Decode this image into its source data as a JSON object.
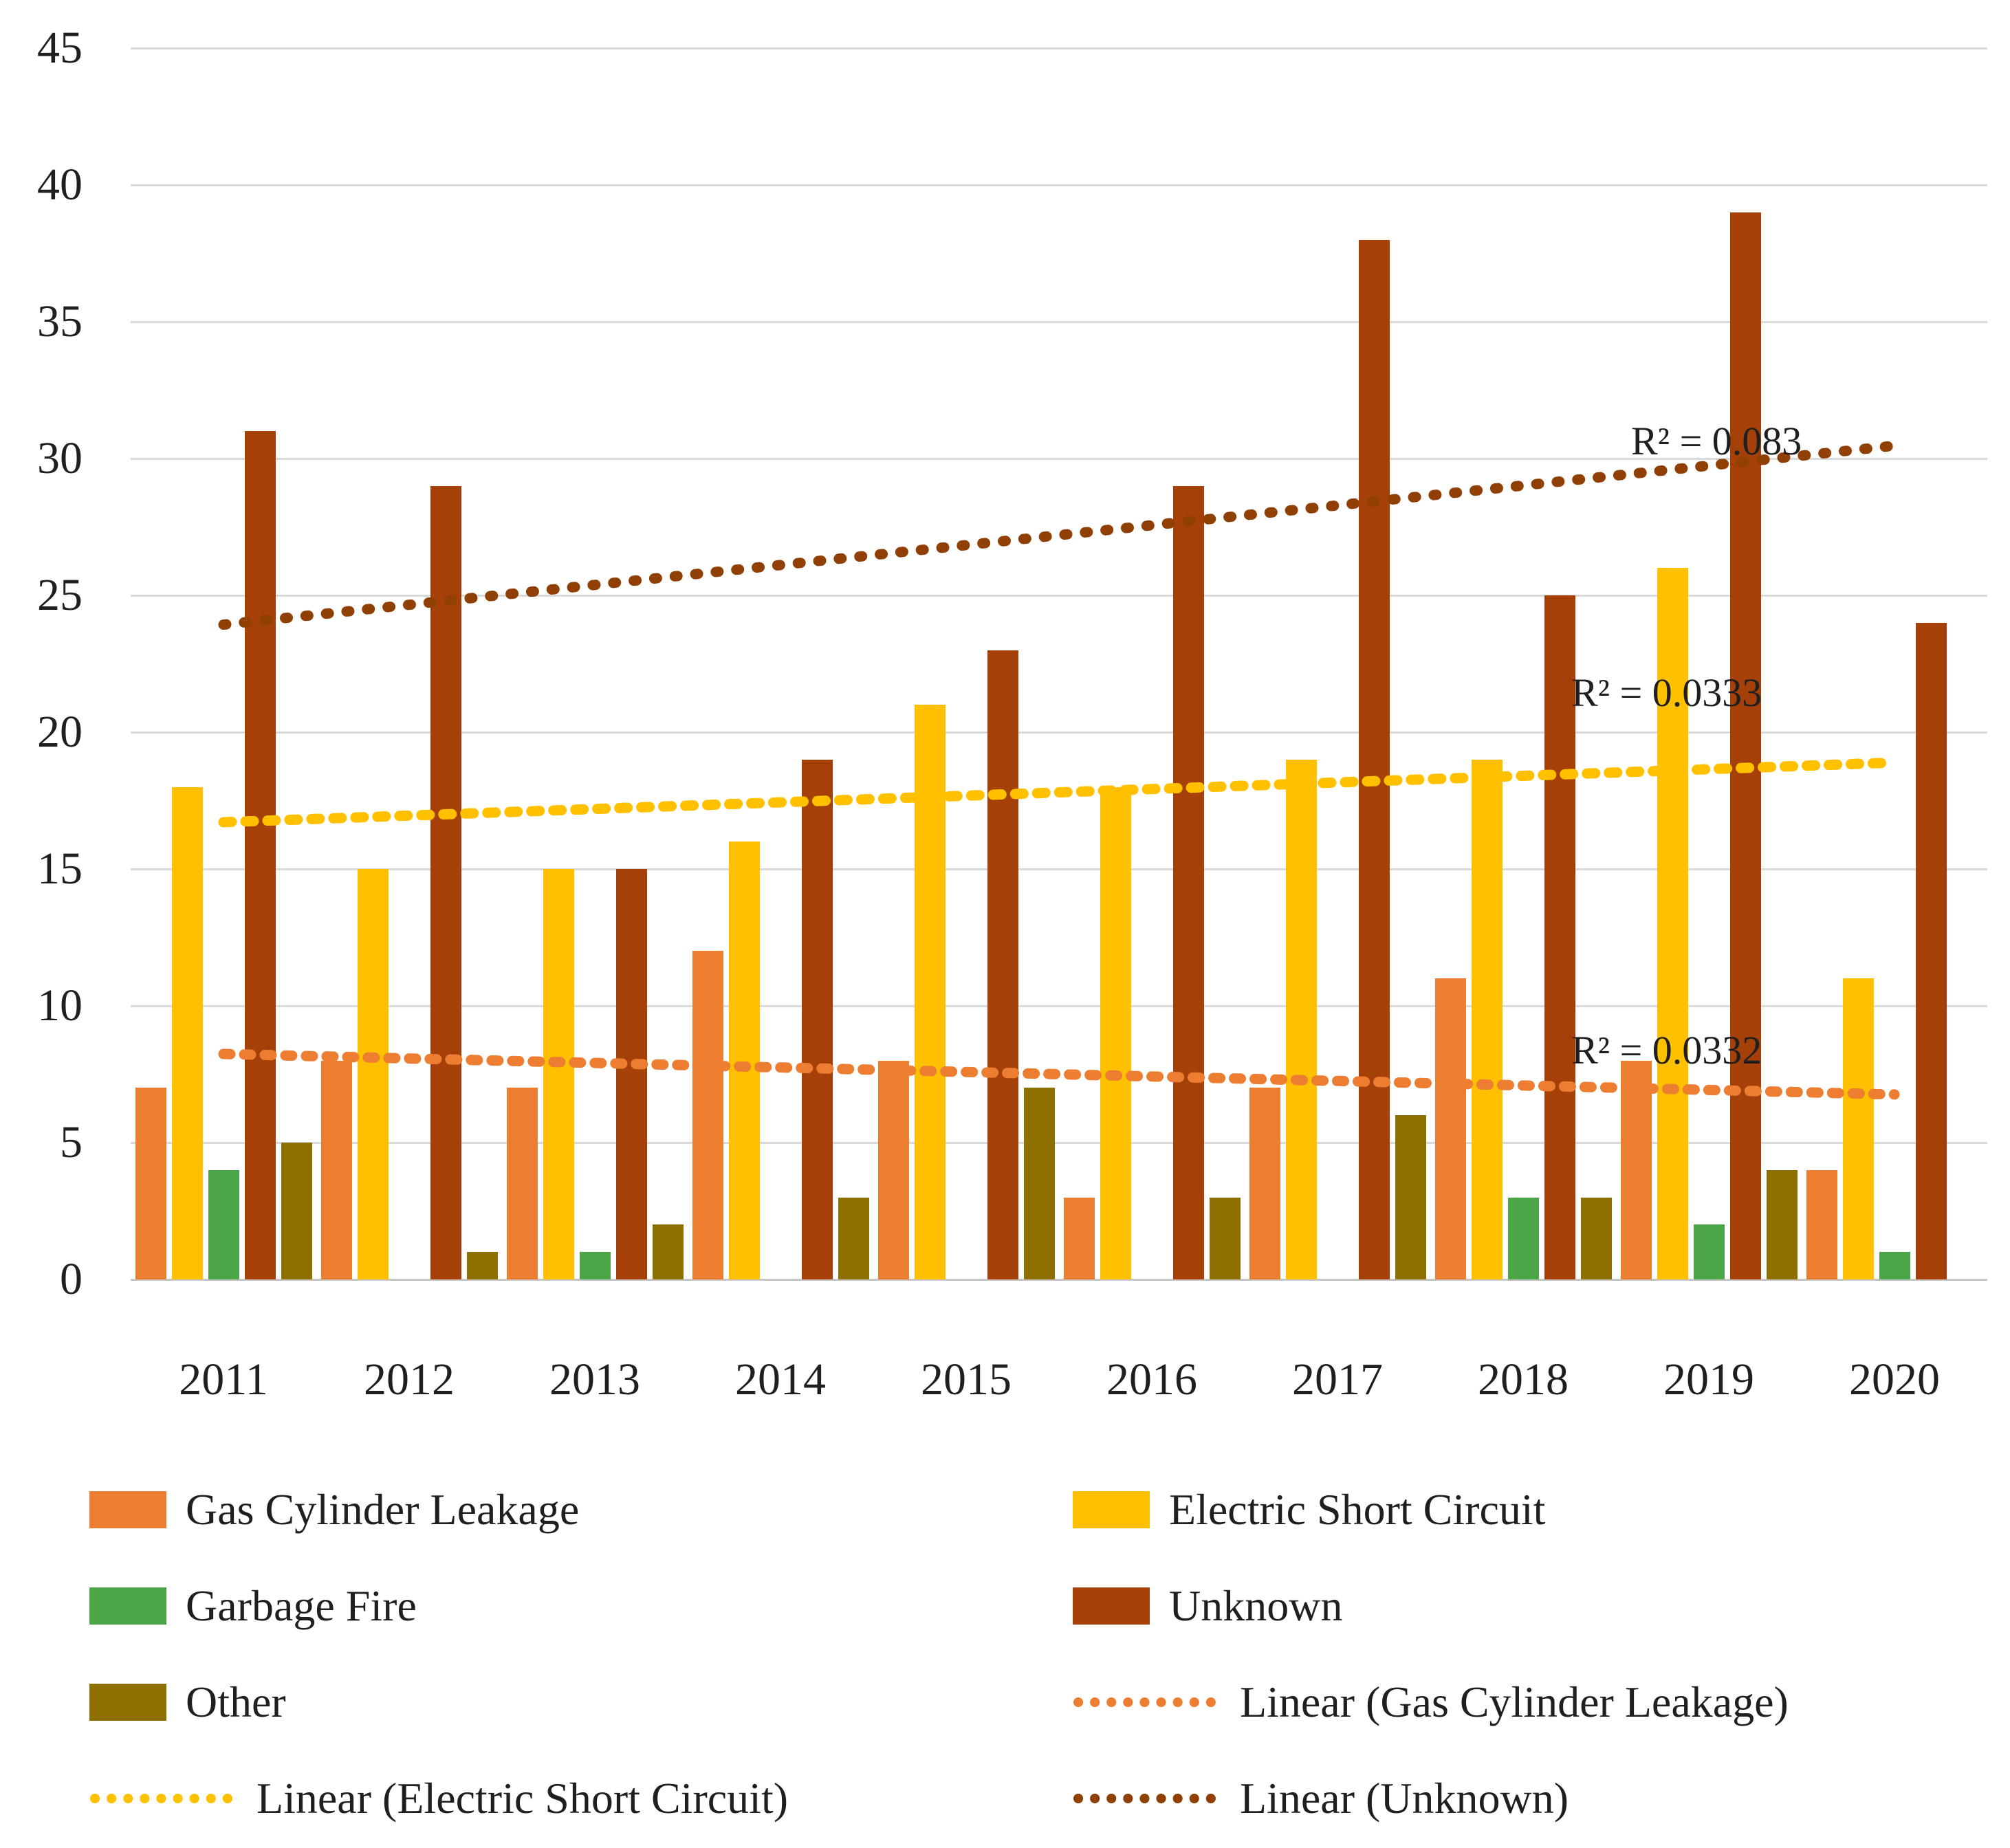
{
  "figure": {
    "background": "#FFFFFF",
    "text_color": "#1F1F1F",
    "gridline_color": "#D9D9D9"
  },
  "chart_data": {
    "type": "bar",
    "title": "",
    "xlabel": "",
    "ylabel": "",
    "categories": [
      "2011",
      "2012",
      "2013",
      "2014",
      "2015",
      "2016",
      "2017",
      "2018",
      "2019",
      "2020"
    ],
    "series": [
      {
        "name": "Gas Cylinder Leakage",
        "color": "#ED7D31",
        "values": [
          7,
          8,
          7,
          12,
          8,
          3,
          7,
          11,
          8,
          4
        ]
      },
      {
        "name": "Electric Short Circuit",
        "color": "#FFC000",
        "values": [
          18,
          15,
          15,
          16,
          21,
          18,
          19,
          19,
          26,
          11
        ]
      },
      {
        "name": "Garbage Fire",
        "color": "#4CA546",
        "values": [
          4,
          0,
          1,
          0,
          0,
          0,
          0,
          3,
          2,
          1
        ]
      },
      {
        "name": "Unknown",
        "color": "#A54108",
        "values": [
          31,
          29,
          15,
          19,
          23,
          29,
          38,
          25,
          39,
          24
        ]
      },
      {
        "name": "Other",
        "color": "#8E7000",
        "values": [
          5,
          1,
          2,
          3,
          7,
          3,
          6,
          3,
          4,
          0
        ]
      }
    ],
    "trendlines": [
      {
        "name": "Linear (Gas Cylinder Leakage)",
        "color": "#ED7D31",
        "start_value": 8.24,
        "end_value": 6.76,
        "r2_label": "R² = 0.0332"
      },
      {
        "name": "Linear (Electric Short Circuit)",
        "color": "#FFC000",
        "start_value": 16.71,
        "end_value": 18.89,
        "r2_label": "R² = 0.0333"
      },
      {
        "name": "Linear (Unknown)",
        "color": "#903F05",
        "start_value": 23.93,
        "end_value": 30.47,
        "r2_label": "R² = 0.083"
      }
    ],
    "ylim": [
      0,
      45
    ],
    "ytick_step": 5,
    "yticks": [
      "0",
      "5",
      "10",
      "15",
      "20",
      "25",
      "30",
      "35",
      "40",
      "45"
    ],
    "grid": true,
    "legend_position": "bottom"
  },
  "legend": {
    "entries": [
      {
        "label": "Gas Cylinder Leakage",
        "swatch": "solid",
        "color": "#ED7D31"
      },
      {
        "label": "Electric Short Circuit",
        "swatch": "solid",
        "color": "#FFC000"
      },
      {
        "label": "Garbage Fire",
        "swatch": "solid",
        "color": "#4CA546"
      },
      {
        "label": "Unknown",
        "swatch": "solid",
        "color": "#A54108"
      },
      {
        "label": "Other",
        "swatch": "solid",
        "color": "#8E7000"
      },
      {
        "label": "Linear (Gas Cylinder Leakage)",
        "swatch": "dotted",
        "color": "#ED7D31"
      },
      {
        "label": "Linear (Electric Short Circuit)",
        "swatch": "dotted",
        "color": "#FFC000"
      },
      {
        "label": "Linear (Unknown)",
        "swatch": "dotted",
        "color": "#903F05"
      }
    ]
  }
}
